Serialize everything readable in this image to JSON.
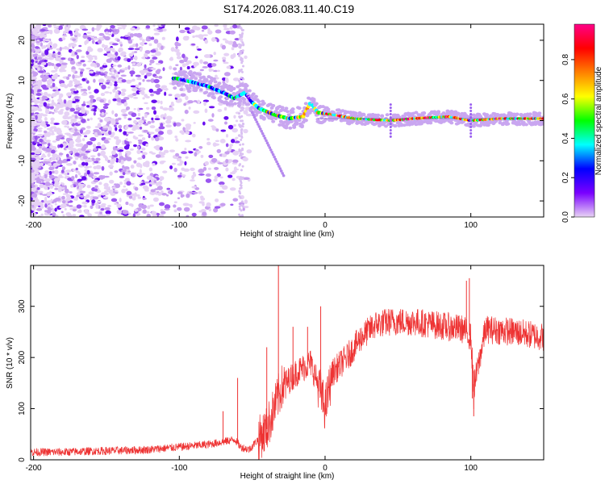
{
  "title": "S174.2026.083.11.40.C19",
  "chart_data": [
    {
      "type": "heatmap",
      "xlabel": "Height of straight line (km)",
      "ylabel": "Frequency (Hz)",
      "xlim": [
        -202,
        150
      ],
      "ylim": [
        -24,
        24
      ],
      "x_ticks": [
        {
          "value": -200,
          "label": "-200"
        },
        {
          "value": -100,
          "label": "-100"
        },
        {
          "value": 0,
          "label": "0"
        },
        {
          "value": 100,
          "label": "100"
        }
      ],
      "y_ticks": [
        {
          "value": -20,
          "label": "-20"
        },
        {
          "value": -10,
          "label": "-10"
        },
        {
          "value": 0,
          "label": "0"
        },
        {
          "value": 10,
          "label": "10"
        },
        {
          "value": 20,
          "label": "20"
        }
      ],
      "colorbar": {
        "label": "Normalized spectral amplitude",
        "range": [
          0,
          0.98
        ],
        "ticks": [
          {
            "value": 0.0,
            "label": "0.0"
          },
          {
            "value": 0.2,
            "label": "0.2"
          },
          {
            "value": 0.4,
            "label": "0.4"
          },
          {
            "value": 0.6,
            "label": "0.6"
          },
          {
            "value": 0.8,
            "label": "0.8"
          }
        ],
        "colors": [
          "#e8d4f4",
          "#7a00ff",
          "#0000ff",
          "#00ffff",
          "#00ff00",
          "#ffff00",
          "#ff8000",
          "#ff0000",
          "#ff0088"
        ]
      },
      "signal_track": [
        {
          "x": -102,
          "f": 10.5
        },
        {
          "x": -90,
          "f": 9.5
        },
        {
          "x": -80,
          "f": 8.5
        },
        {
          "x": -70,
          "f": 7
        },
        {
          "x": -62,
          "f": 5.5
        },
        {
          "x": -55,
          "f": 7
        },
        {
          "x": -50,
          "f": 4.5
        },
        {
          "x": -45,
          "f": 3
        },
        {
          "x": -35,
          "f": 1.5
        },
        {
          "x": -25,
          "f": 0.5
        },
        {
          "x": -15,
          "f": 1
        },
        {
          "x": -10,
          "f": 4.5
        },
        {
          "x": -5,
          "f": 2
        },
        {
          "x": 5,
          "f": 1.5
        },
        {
          "x": 20,
          "f": 0.5
        },
        {
          "x": 45,
          "f": 0
        },
        {
          "x": 60,
          "f": 0.5
        },
        {
          "x": 85,
          "f": 1
        },
        {
          "x": 100,
          "f": 0
        },
        {
          "x": 120,
          "f": 0.5
        },
        {
          "x": 150,
          "f": 0.5
        }
      ]
    },
    {
      "type": "line",
      "xlabel": "Height of straight line (km)",
      "ylabel": "SNR (10 * v/v)",
      "xlim": [
        -202,
        150
      ],
      "ylim": [
        0,
        380
      ],
      "x_ticks": [
        {
          "value": -200,
          "label": "-200"
        },
        {
          "value": -100,
          "label": "-100"
        },
        {
          "value": 0,
          "label": "0"
        },
        {
          "value": 100,
          "label": "100"
        }
      ],
      "y_ticks": [
        {
          "value": 0,
          "label": "0"
        },
        {
          "value": 100,
          "label": "100"
        },
        {
          "value": 200,
          "label": "200"
        },
        {
          "value": 300,
          "label": "300"
        }
      ],
      "series": [
        {
          "name": "SNR",
          "color": "#ee3333",
          "x": [
            -202,
            -180,
            -160,
            -140,
            -120,
            -100,
            -80,
            -70,
            -62,
            -58,
            -52,
            -40,
            -30,
            -20,
            -10,
            -5,
            0,
            5,
            15,
            25,
            35,
            45,
            60,
            80,
            95,
            100,
            102,
            110,
            130,
            150
          ],
          "y": [
            15,
            15,
            17,
            18,
            20,
            25,
            30,
            35,
            40,
            25,
            20,
            60,
            140,
            170,
            190,
            150,
            100,
            170,
            200,
            240,
            265,
            270,
            270,
            262,
            255,
            240,
            140,
            255,
            250,
            240
          ]
        }
      ],
      "spikes": [
        {
          "x": -70,
          "y": 95
        },
        {
          "x": -60,
          "y": 160
        },
        {
          "x": -40,
          "y": 220
        },
        {
          "x": -32,
          "y": 380
        },
        {
          "x": -22,
          "y": 260
        },
        {
          "x": -12,
          "y": 260
        },
        {
          "x": -3,
          "y": 300
        },
        {
          "x": 97,
          "y": 350
        },
        {
          "x": 99,
          "y": 355
        },
        {
          "x": 102,
          "y": 85
        },
        {
          "x": 101,
          "y": 120
        }
      ]
    }
  ]
}
